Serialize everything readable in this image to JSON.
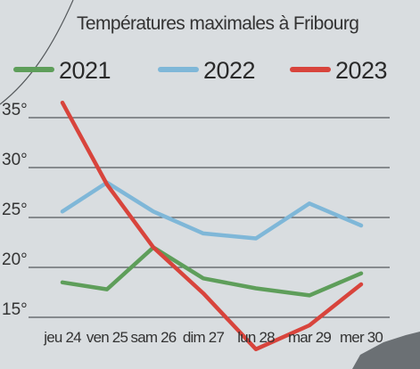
{
  "chart_data": {
    "type": "line",
    "title": "Températures maximales à Fribourg",
    "categories": [
      "jeu 24",
      "ven 25",
      "sam 26",
      "dim 27",
      "lun 28",
      "mar 29",
      "mer 30"
    ],
    "y_ticks": [
      "35°",
      "30°",
      "25°",
      "20°",
      "15°"
    ],
    "ylim": [
      14,
      37
    ],
    "grid": "horizontal",
    "legend_position": "top",
    "series": [
      {
        "name": "2021",
        "color": "#5e9e5a",
        "values": [
          18.5,
          17.8,
          22,
          18.9,
          17.9,
          17.2,
          19.4
        ]
      },
      {
        "name": "2022",
        "color": "#7fb7d8",
        "values": [
          25.6,
          28.5,
          25.6,
          23.4,
          22.9,
          26.4,
          24.2
        ]
      },
      {
        "name": "2023",
        "color": "#d8443c",
        "values": [
          36.5,
          28.3,
          22,
          17.4,
          11.8,
          14.2,
          18.3
        ]
      }
    ]
  }
}
